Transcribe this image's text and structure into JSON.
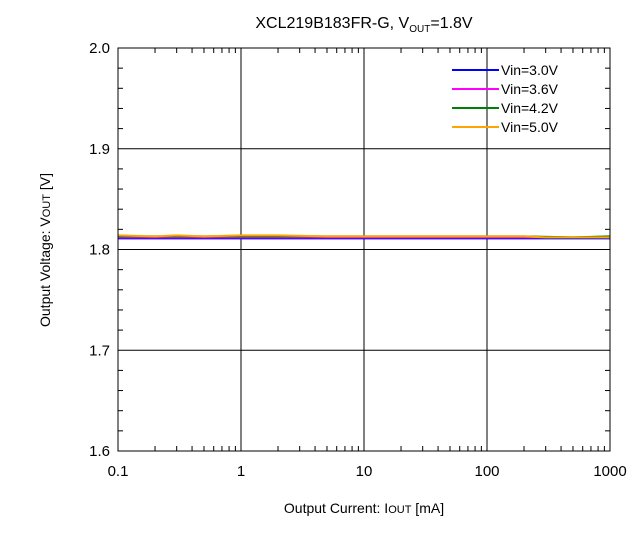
{
  "chart_data": {
    "type": "line",
    "title_main": "XCL219B183FR-G, V",
    "title_sub": "OUT",
    "title_tail": "=1.8V",
    "xlabel": "Output  Current:  I",
    "xlabel_sub": "OUT",
    "xlabel_tail": " [mA]",
    "ylabel": "Output  Voltage:  V",
    "ylabel_sub": "OUT",
    "ylabel_tail": " [V]",
    "x_scale": "log",
    "xlim": [
      0.1,
      1000
    ],
    "ylim": [
      1.6,
      2.0
    ],
    "x_ticks": [
      0.1,
      1,
      10,
      100,
      1000
    ],
    "x_tick_labels": [
      "0.1",
      "1",
      "10",
      "100",
      "1000"
    ],
    "y_ticks": [
      1.6,
      1.7,
      1.8,
      1.9,
      2.0
    ],
    "y_tick_labels": [
      "1.6",
      "1.7",
      "1.8",
      "1.9",
      "2.0"
    ],
    "grid": true,
    "legend_position": "top-right",
    "series": [
      {
        "name": "Vin=3.0V",
        "color": "#0000ff",
        "x": [
          0.1,
          0.2,
          0.5,
          1,
          2,
          5,
          10,
          20,
          50,
          100,
          200,
          500,
          1000
        ],
        "y": [
          1.811,
          1.811,
          1.811,
          1.811,
          1.811,
          1.811,
          1.811,
          1.811,
          1.811,
          1.811,
          1.811,
          1.811,
          1.811
        ]
      },
      {
        "name": "Vin=3.6V",
        "color": "#ff00ff",
        "x": [
          0.1,
          0.2,
          0.5,
          1,
          2,
          5,
          10,
          20,
          50,
          100,
          200,
          500,
          1000
        ],
        "y": [
          1.812,
          1.812,
          1.812,
          1.812,
          1.812,
          1.812,
          1.812,
          1.812,
          1.812,
          1.812,
          1.812,
          1.812,
          1.812
        ]
      },
      {
        "name": "Vin=4.2V",
        "color": "#008000",
        "x": [
          0.1,
          0.2,
          0.5,
          1,
          2,
          5,
          10,
          20,
          50,
          100,
          200,
          500,
          1000
        ],
        "y": [
          1.813,
          1.813,
          1.813,
          1.813,
          1.813,
          1.813,
          1.813,
          1.813,
          1.813,
          1.813,
          1.813,
          1.812,
          1.813
        ]
      },
      {
        "name": "Vin=5.0V",
        "color": "#ffa500",
        "x": [
          0.1,
          0.2,
          0.3,
          0.5,
          1,
          1.5,
          2,
          5,
          10,
          20,
          50,
          100,
          200,
          300,
          500,
          1000
        ],
        "y": [
          1.814,
          1.813,
          1.814,
          1.813,
          1.814,
          1.814,
          1.814,
          1.813,
          1.813,
          1.813,
          1.813,
          1.813,
          1.813,
          1.812,
          1.812,
          1.812
        ]
      }
    ]
  }
}
